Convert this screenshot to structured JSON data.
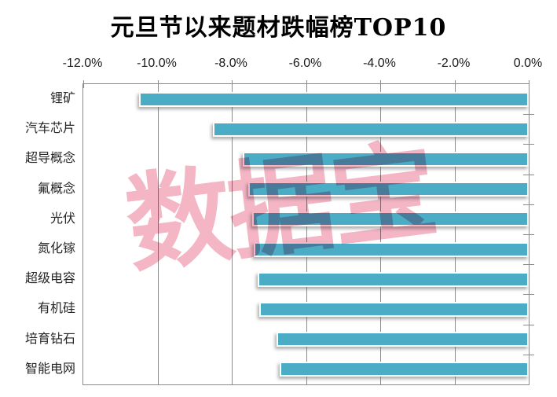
{
  "chart": {
    "title": "元旦节以来题材跌幅榜TOP10",
    "watermark_text": "数据宝"
  },
  "chart_data": {
    "type": "bar",
    "orientation": "horizontal",
    "title": "元旦节以来题材跌幅榜TOP10",
    "categories": [
      "锂矿",
      "汽车芯片",
      "超导概念",
      "氟概念",
      "光伏",
      "氮化镓",
      "超级电容",
      "有机硅",
      "培育钻石",
      "智能电网"
    ],
    "values": [
      -10.5,
      -8.5,
      -7.7,
      -7.55,
      -7.45,
      -7.4,
      -7.3,
      -7.25,
      -6.8,
      -6.7
    ],
    "unit": "%",
    "xlabel": "",
    "ylabel": "",
    "xlim": [
      -12,
      0
    ],
    "x_tick_labels": [
      "-12.0%",
      "-10.0%",
      "-8.0%",
      "-6.0%",
      "-4.0%",
      "-2.0%",
      "0.0%"
    ],
    "grid": true,
    "legend": false,
    "bar_color": "#4BACC6",
    "grid_color": "#8C8C8C",
    "watermark_text": "数据宝",
    "watermark_color": "#F2A2B6"
  }
}
